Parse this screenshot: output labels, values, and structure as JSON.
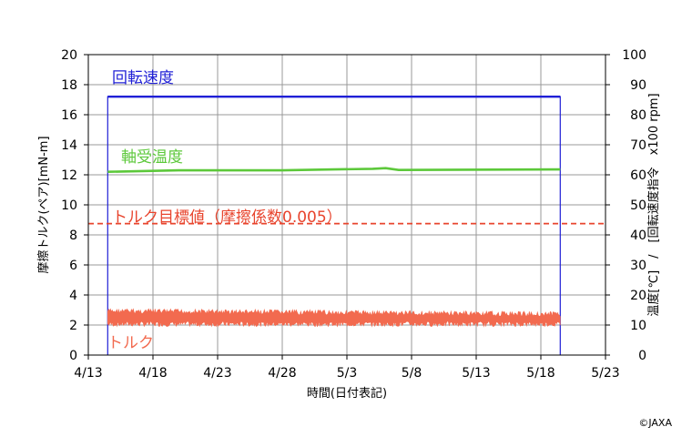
{
  "chart_data": {
    "type": "line",
    "xlabel": "時間(日付表記)",
    "ylabel_left": "摩擦トルク(ペア)[mN-m]",
    "ylabel_right": "温度[℃]　/　[回転速度指令　x100 rpm]",
    "x_ticks": [
      "4/13",
      "4/18",
      "4/23",
      "4/28",
      "5/3",
      "5/8",
      "5/13",
      "5/18",
      "5/23"
    ],
    "x_range_days": [
      0,
      40
    ],
    "ylim_left": [
      0,
      20
    ],
    "ylim_right": [
      0,
      100
    ],
    "y_ticks_left": [
      0,
      2,
      4,
      6,
      8,
      10,
      12,
      14,
      16,
      18,
      20
    ],
    "y_ticks_right": [
      0,
      10,
      20,
      30,
      40,
      50,
      60,
      70,
      80,
      90,
      100
    ],
    "grid": true,
    "series": [
      {
        "name": "回転速度",
        "axis": "right",
        "color": "#1f1fd6",
        "x": [
          "4/14 12:00",
          "4/14 12:00",
          "5/19 12:00",
          "5/19 12:00"
        ],
        "values": [
          0,
          86,
          86,
          0
        ]
      },
      {
        "name": "軸受温度",
        "axis": "right",
        "color": "#5cc83a",
        "x": [
          "4/14 12:00",
          "4/20",
          "4/28",
          "5/2",
          "5/5",
          "5/6",
          "5/7",
          "5/12",
          "5/19 12:00"
        ],
        "values": [
          61,
          61.5,
          61.5,
          61.8,
          62,
          62.2,
          61.6,
          61.7,
          61.8
        ]
      },
      {
        "name": "トルク",
        "axis": "left",
        "color": "#f26a4f",
        "x": [
          "4/14 12:00",
          "5/19 12:00"
        ],
        "values_min": [
          1.9,
          1.9
        ],
        "values_max": [
          3.1,
          2.9
        ]
      },
      {
        "name": "トルク目標値（摩擦係数0.005）",
        "axis": "left",
        "color": "#e8452e",
        "style": "dashed",
        "values": [
          8.75
        ]
      }
    ],
    "series_labels": [
      {
        "text": "回転速度",
        "color": "#1f1fd6"
      },
      {
        "text": "軸受温度",
        "color": "#5cc83a"
      },
      {
        "text": "トルク目標値（摩擦係数0.005）",
        "color": "#e8452e"
      },
      {
        "text": "トルク",
        "color": "#f26a4f"
      }
    ]
  },
  "credit": "©JAXA"
}
